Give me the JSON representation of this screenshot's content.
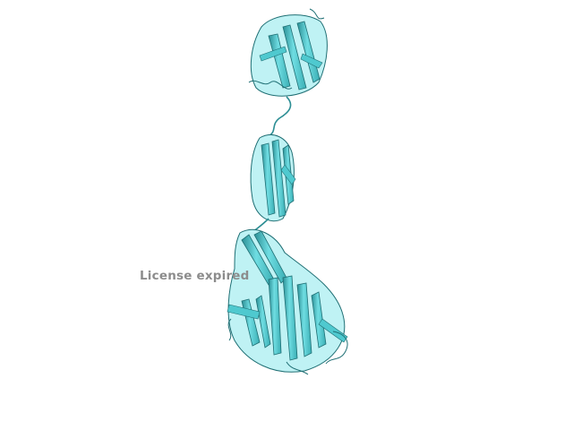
{
  "watermark": {
    "text": "License expired"
  },
  "molecule": {
    "representation": "cartoon",
    "colors": {
      "background": "#ffffff",
      "ribbon_light": "#7fe6ea",
      "ribbon_mid": "#4fc9cf",
      "ribbon_dark": "#1f6f74",
      "watermark": "#8c8c8c"
    }
  }
}
